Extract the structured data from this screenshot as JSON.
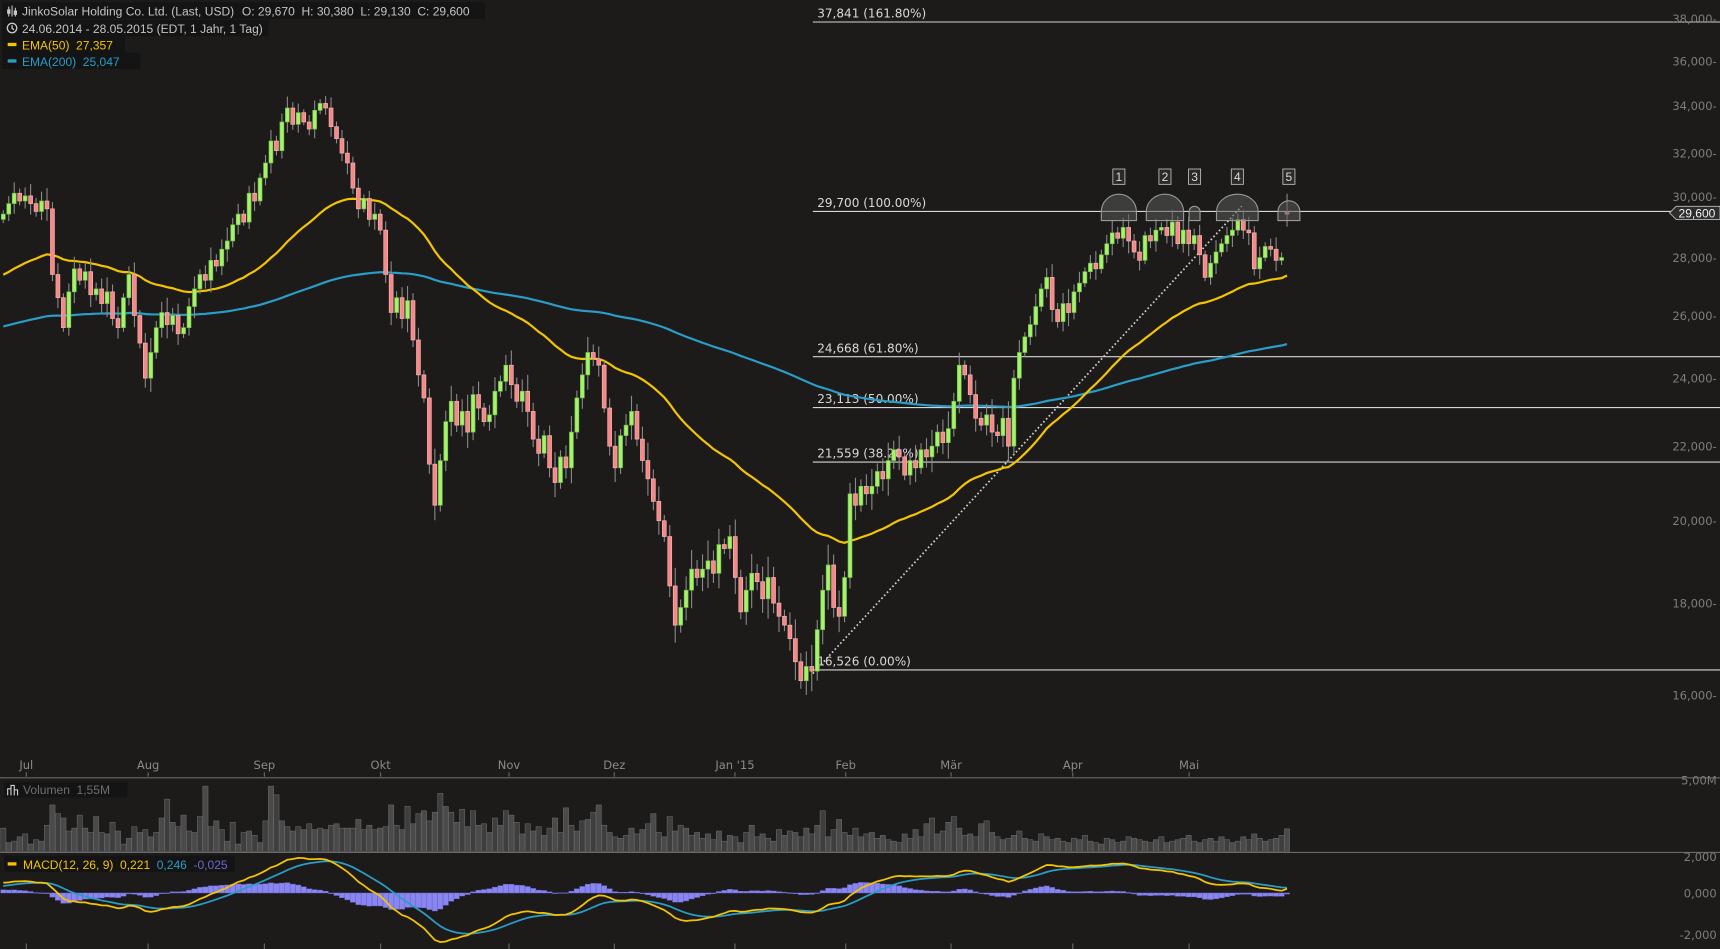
{
  "header": {
    "title": "JinkoSolar Holding Co. Ltd. (Last, USD)",
    "ohlc": "O: 29,670  H: 30,380  L: 29,130  C: 29,600",
    "range": "24.06.2014 - 28.05.2015 (EDT, 1 Jahr, 1 Tag)",
    "ema50_label": "EMA(50)",
    "ema50_value": "27,357",
    "ema200_label": "EMA(200)",
    "ema200_value": "25,047",
    "icons": {
      "chart": "candlestick-settings-icon",
      "clock": "clock-icon"
    }
  },
  "colors": {
    "background": "#1c1b1a",
    "up": "#a8f070",
    "down": "#f28a8a",
    "ema50": "#f5c400",
    "ema200": "#2a9cc6",
    "macd_hist": "#8a86f0",
    "signal": "#2a9cc6",
    "macd": "#f5c400"
  },
  "last_price": "29,600",
  "price_axis": [
    "38,000",
    "36,000",
    "34,000",
    "32,000",
    "30,000",
    "28,000",
    "26,000",
    "24,000",
    "22,000",
    "20,000",
    "18,000",
    "16,000"
  ],
  "months": [
    "Jul",
    "Aug",
    "Sep",
    "Okt",
    "Nov",
    "Dez",
    "Jan '15",
    "Feb",
    "Mär",
    "Apr",
    "Mai"
  ],
  "fibonacci": [
    {
      "label": "37,841 (161.80%)",
      "price": 37.841
    },
    {
      "label": "29,700 (100.00%)",
      "price": 29.7
    },
    {
      "label": "24,668 (61.80%)",
      "price": 24.668
    },
    {
      "label": "23,113 (50.00%)",
      "price": 23.113
    },
    {
      "label": "21,559 (38.20%)",
      "price": 21.559
    },
    {
      "label": "16,526 (0.00%)",
      "price": 16.526
    }
  ],
  "markers": [
    "1",
    "2",
    "3",
    "4",
    "5"
  ],
  "volume": {
    "label": "Volumen",
    "value": "1,55M",
    "axis": "5,00M",
    "icon": "bar-chart-icon"
  },
  "macd": {
    "label": "MACD(12, 26, 9)",
    "macd_value": "0,221",
    "signal_value": "0,246",
    "hist_value": "-0,025",
    "axis": [
      "2,000",
      "0,000",
      "-2,000"
    ]
  },
  "chart_data": {
    "type": "candlestick",
    "scale": "log",
    "ylim": [
      15.2,
      38.5
    ],
    "x_start": "24.06.2014",
    "x_end": "28.05.2015",
    "last_bar": {
      "open": 29.67,
      "high": 30.38,
      "low": 29.13,
      "close": 29.6
    },
    "close": [
      29.6,
      30.0,
      30.4,
      30.1,
      30.3,
      30.0,
      29.7,
      30.1,
      29.8,
      27.4,
      26.6,
      25.6,
      26.8,
      27.6,
      27.2,
      27.5,
      26.7,
      26.9,
      26.4,
      26.8,
      25.9,
      25.6,
      26.6,
      27.4,
      26.0,
      25.1,
      24.0,
      24.8,
      25.6,
      26.1,
      25.7,
      26.0,
      25.4,
      25.6,
      26.3,
      26.9,
      27.4,
      27.2,
      27.9,
      27.7,
      28.3,
      28.6,
      29.2,
      29.6,
      29.3,
      30.4,
      30.1,
      31.0,
      31.6,
      32.5,
      32.1,
      33.3,
      33.9,
      33.2,
      33.7,
      33.3,
      33.0,
      33.8,
      34.1,
      33.9,
      33.1,
      32.6,
      32.0,
      31.6,
      30.6,
      29.8,
      30.2,
      29.4,
      29.6,
      29.0,
      27.4,
      26.1,
      26.6,
      25.9,
      26.5,
      25.2,
      24.1,
      23.4,
      21.5,
      20.4,
      21.6,
      22.7,
      23.3,
      22.6,
      23.0,
      22.4,
      23.5,
      23.1,
      22.7,
      22.9,
      23.6,
      23.9,
      24.4,
      23.8,
      23.3,
      23.6,
      23.0,
      22.2,
      21.8,
      22.3,
      21.4,
      21.0,
      21.7,
      21.4,
      22.4,
      23.4,
      24.1,
      24.8,
      24.6,
      24.4,
      23.1,
      22.0,
      21.4,
      22.3,
      22.6,
      23.0,
      22.2,
      21.6,
      21.1,
      20.5,
      20.0,
      19.6,
      18.4,
      17.5,
      17.9,
      18.3,
      18.8,
      18.6,
      18.8,
      19.0,
      18.7,
      19.4,
      19.3,
      19.6,
      18.6,
      17.8,
      18.3,
      18.7,
      18.5,
      18.1,
      18.6,
      18.0,
      17.7,
      17.5,
      17.2,
      16.7,
      16.3,
      16.6,
      16.5,
      17.4,
      18.3,
      18.9,
      17.9,
      17.7,
      18.6,
      20.7,
      20.4,
      20.9,
      20.7,
      20.9,
      21.3,
      21.1,
      21.6,
      21.9,
      21.7,
      21.2,
      21.6,
      21.4,
      21.9,
      21.7,
      22.0,
      22.4,
      22.1,
      22.5,
      23.3,
      24.4,
      24.1,
      23.5,
      22.8,
      22.6,
      22.9,
      22.4,
      22.3,
      22.8,
      22.0,
      24.0,
      24.8,
      25.3,
      25.7,
      26.3,
      26.9,
      27.3,
      26.2,
      25.8,
      26.4,
      26.1,
      26.8,
      27.1,
      27.5,
      27.8,
      27.6,
      28.1,
      28.5,
      28.9,
      28.7,
      29.1,
      28.6,
      28.2,
      27.9,
      28.8,
      28.6,
      29.0,
      29.1,
      28.8,
      29.3,
      28.5,
      29.0,
      28.5,
      28.8,
      28.1,
      27.3,
      27.8,
      28.2,
      28.5,
      28.8,
      29.0,
      29.4,
      29.0,
      28.9,
      27.6,
      28.0,
      28.4,
      28.3,
      27.9,
      28.0,
      29.6
    ],
    "volume_m": [
      1.6,
      0.6,
      0.7,
      1.0,
      1.2,
      0.5,
      0.8,
      0.7,
      1.8,
      3.2,
      2.6,
      2.3,
      1.4,
      1.6,
      2.5,
      1.6,
      1.3,
      2.4,
      1.3,
      1.2,
      2.0,
      1.4,
      0.5,
      0.9,
      1.7,
      1.3,
      1.5,
      1.0,
      1.3,
      2.3,
      3.6,
      2.0,
      1.7,
      2.5,
      1.4,
      1.3,
      2.4,
      4.5,
      1.7,
      2.1,
      1.5,
      0.7,
      2.0,
      0.5,
      1.3,
      1.4,
      1.1,
      0.6,
      2.1,
      4.5,
      3.9,
      2.1,
      1.7,
      1.4,
      1.7,
      1.5,
      1.9,
      1.5,
      1.6,
      1.5,
      1.8,
      1.9,
      1.6,
      1.6,
      1.6,
      2.2,
      1.5,
      1.8,
      1.5,
      1.6,
      1.7,
      3.2,
      1.8,
      1.5,
      3.1,
      1.9,
      2.6,
      2.8,
      2.1,
      2.7,
      4.0,
      3.1,
      2.7,
      2.0,
      2.9,
      1.7,
      2.8,
      1.8,
      1.9,
      1.3,
      2.3,
      1.8,
      2.8,
      2.5,
      2.0,
      1.2,
      1.9,
      1.4,
      1.7,
      1.1,
      1.6,
      2.3,
      1.3,
      3.0,
      1.8,
      1.4,
      2.1,
      2.2,
      2.7,
      3.2,
      1.8,
      1.3,
      1.0,
      0.9,
      1.1,
      1.6,
      1.2,
      1.5,
      1.9,
      2.6,
      1.3,
      1.0,
      2.4,
      1.4,
      1.8,
      1.6,
      1.1,
      1.3,
      0.9,
      1.2,
      0.8,
      1.4,
      0.7,
      1.1,
      1.0,
      0.6,
      1.3,
      1.8,
      1.0,
      1.2,
      0.9,
      0.7,
      1.5,
      1.1,
      1.4,
      1.3,
      1.0,
      1.6,
      1.2,
      1.8,
      2.8,
      1.0,
      1.5,
      2.2,
      1.3,
      1.1,
      1.6,
      1.0,
      1.2,
      1.3,
      0.9,
      1.1,
      0.8,
      0.7,
      0.6,
      1.2,
      0.9,
      1.5,
      1.0,
      1.9,
      2.3,
      1.2,
      1.4,
      2.0,
      2.4,
      1.6,
      1.1,
      1.2,
      1.0,
      1.9,
      2.1,
      1.3,
      1.0,
      0.8,
      0.9,
      1.1,
      1.4,
      0.9,
      0.8,
      0.7,
      1.2,
      1.0,
      0.8,
      0.9,
      0.7,
      0.6,
      0.9,
      0.8,
      1.1,
      0.7,
      0.6,
      0.5,
      0.9,
      0.8,
      0.6,
      0.7,
      1.0,
      0.9,
      0.8,
      0.7,
      0.6,
      0.8,
      1.0,
      0.6,
      0.7,
      0.8,
      0.9,
      1.1,
      0.7,
      0.6,
      0.8,
      0.9,
      0.7,
      1.0,
      0.8,
      0.6,
      0.7,
      1.0,
      0.8,
      1.2,
      0.9,
      0.7,
      0.8,
      0.9,
      1.1,
      1.55
    ]
  }
}
